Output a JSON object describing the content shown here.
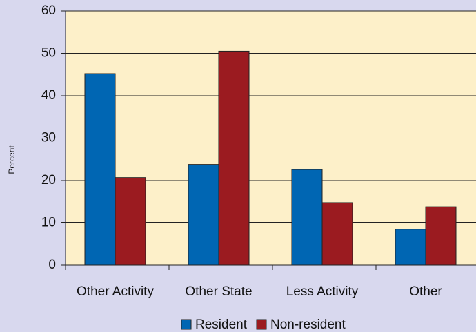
{
  "chart_data": {
    "type": "bar",
    "y_label": "Percent",
    "categories": [
      "Other Activity",
      "Other State",
      "Less Activity",
      "Other"
    ],
    "series": [
      {
        "name": "Resident",
        "color": "#0066b3",
        "values": [
          45.2,
          23.8,
          22.6,
          8.5
        ]
      },
      {
        "name": "Non-resident",
        "color": "#9b1b20",
        "values": [
          20.7,
          50.5,
          14.8,
          13.8
        ]
      }
    ],
    "ylim": [
      0,
      60
    ],
    "yticks": [
      0,
      10,
      20,
      30,
      40,
      50,
      60
    ],
    "grid": true,
    "legend": "bottom"
  }
}
